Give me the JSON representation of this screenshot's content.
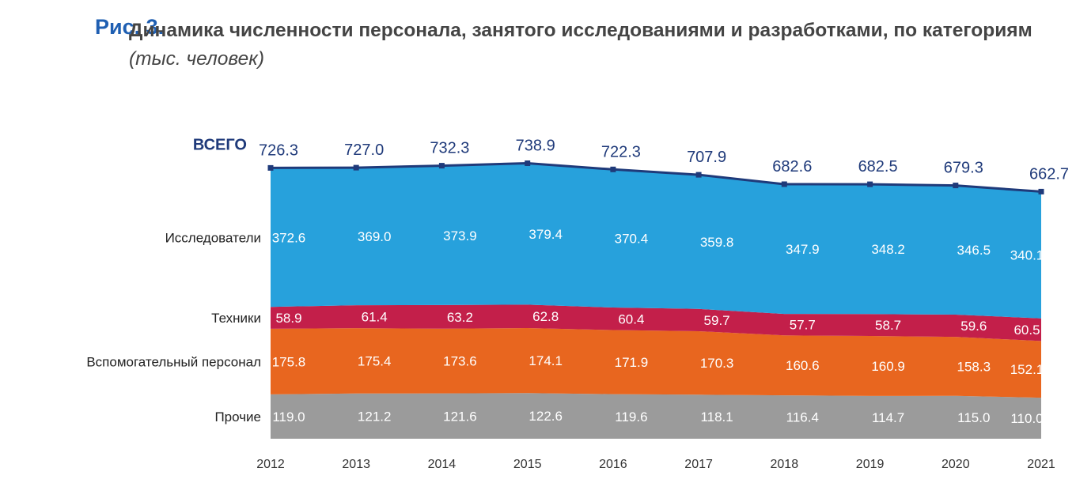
{
  "figure": {
    "number": "Рис. 3.",
    "title_bold": "Динамика численности персонала, занятого исследованиями и разработками, по категориям",
    "title_unit": "(тыс. человек)"
  },
  "chart_data": {
    "type": "area",
    "stacked": true,
    "x": [
      "2012",
      "2013",
      "2014",
      "2015",
      "2016",
      "2017",
      "2018",
      "2019",
      "2020",
      "2021"
    ],
    "series": [
      {
        "name": "Прочие",
        "color": "#9b9b9b",
        "values": [
          119.0,
          121.2,
          121.6,
          122.6,
          119.6,
          118.1,
          116.4,
          114.7,
          115.0,
          110.0
        ]
      },
      {
        "name": "Вспомогательный персонал",
        "color": "#e8661f",
        "values": [
          175.8,
          175.4,
          173.6,
          174.1,
          171.9,
          170.3,
          160.6,
          160.9,
          158.3,
          152.1
        ]
      },
      {
        "name": "Техники",
        "color": "#c31f4a",
        "values": [
          58.9,
          61.4,
          63.2,
          62.8,
          60.4,
          59.7,
          57.7,
          58.7,
          59.6,
          60.5
        ]
      },
      {
        "name": "Исследователи",
        "color": "#27a1dc",
        "values": [
          372.6,
          369.0,
          373.9,
          379.4,
          370.4,
          359.8,
          347.9,
          348.2,
          346.5,
          340.1
        ]
      }
    ],
    "total": {
      "name": "ВСЕГО",
      "color": "#1f3a7a",
      "values": [
        726.3,
        727.0,
        732.3,
        738.9,
        722.3,
        707.9,
        682.6,
        682.5,
        679.3,
        662.7
      ]
    },
    "legend": "category labels at left of chart",
    "grid": false
  }
}
